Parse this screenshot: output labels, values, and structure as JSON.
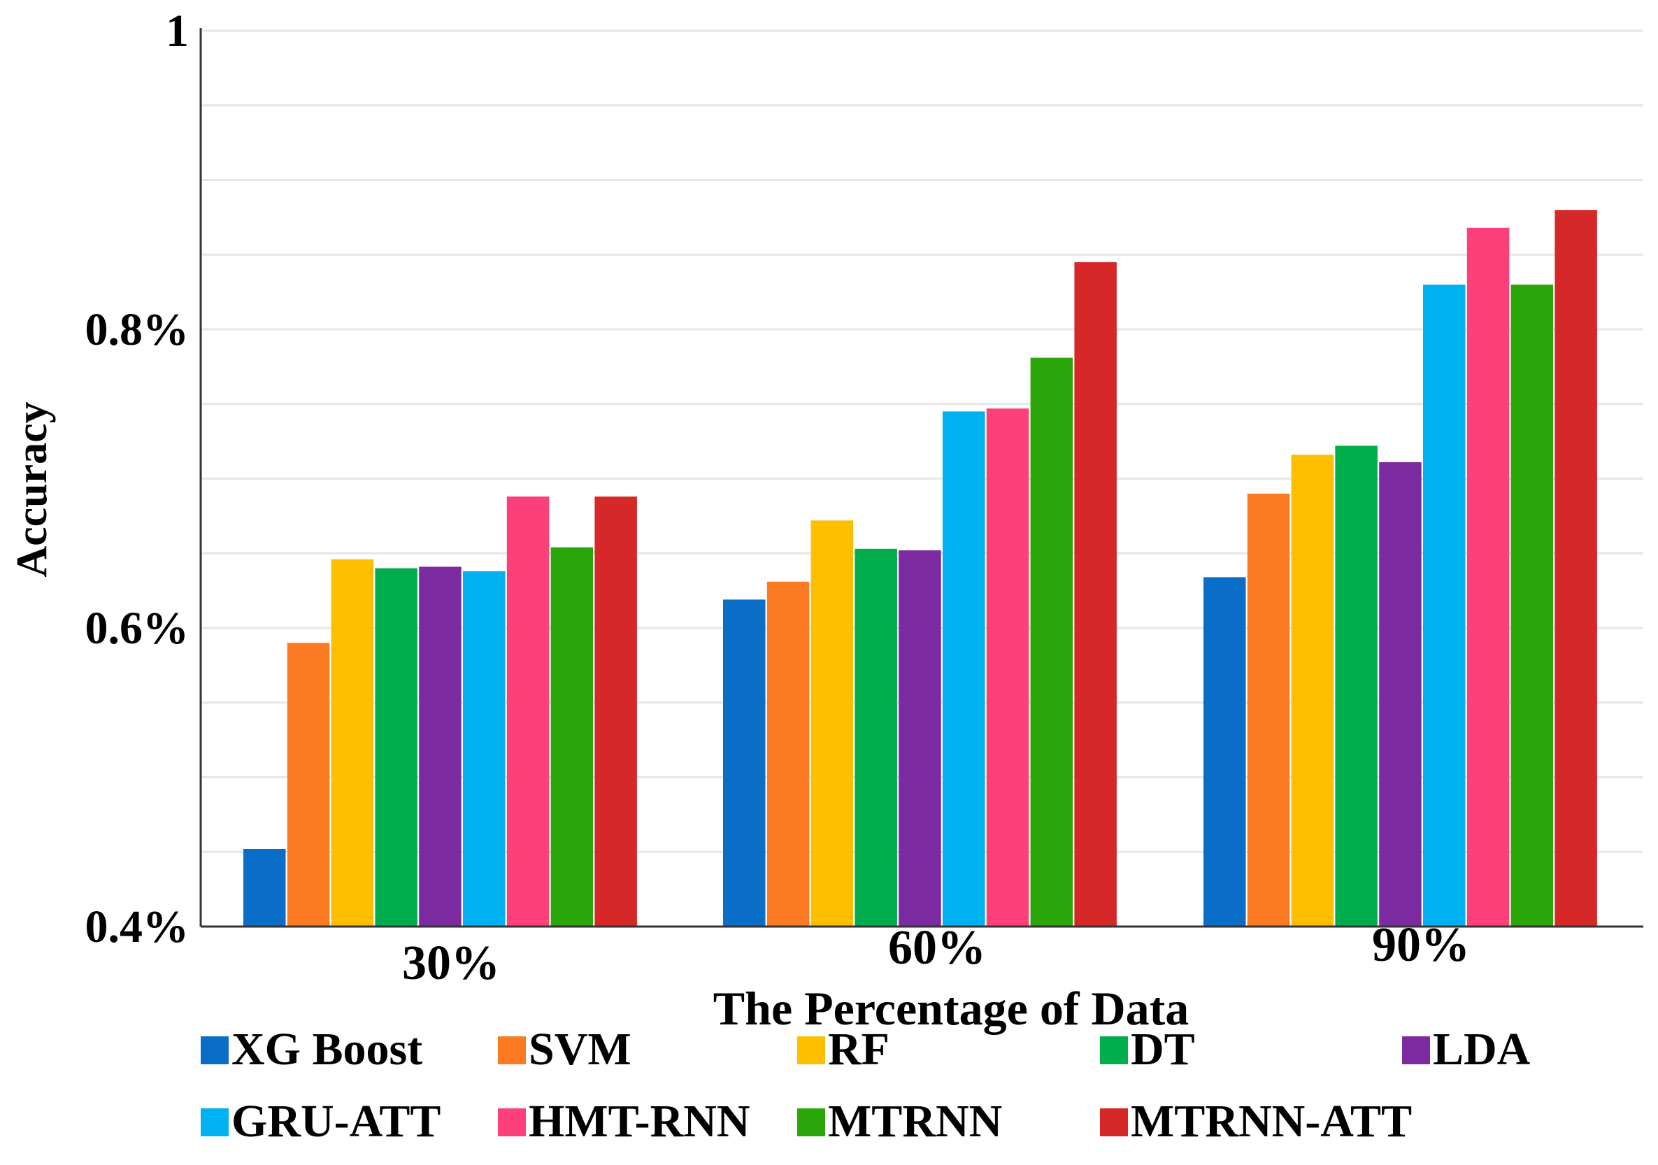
{
  "chart_data": {
    "type": "bar",
    "title": "",
    "xlabel": "The Percentage of Data",
    "ylabel": "Accuracy",
    "ylim": [
      0.4,
      1.0
    ],
    "yticks": [
      {
        "value": 0.4,
        "label": "0.4%"
      },
      {
        "value": 0.6,
        "label": "0.6%"
      },
      {
        "value": 0.8,
        "label": "0.8%"
      },
      {
        "value": 1.0,
        "label": "1"
      }
    ],
    "grid": true,
    "legend_position": "bottom",
    "categories": [
      "30%",
      "60%",
      "90%"
    ],
    "series": [
      {
        "name": "XG Boost",
        "color": "#0a6ec9",
        "values": [
          0.452,
          0.619,
          0.634
        ]
      },
      {
        "name": "SVM",
        "color": "#fb7a22",
        "values": [
          0.59,
          0.631,
          0.69
        ]
      },
      {
        "name": "RF",
        "color": "#fdbf00",
        "values": [
          0.646,
          0.672,
          0.716
        ]
      },
      {
        "name": "DT",
        "color": "#00ad4c",
        "values": [
          0.64,
          0.653,
          0.722
        ]
      },
      {
        "name": "LDA",
        "color": "#7c2aa0",
        "values": [
          0.641,
          0.652,
          0.711
        ]
      },
      {
        "name": "GRU-ATT",
        "color": "#00b1f1",
        "values": [
          0.638,
          0.745,
          0.83
        ]
      },
      {
        "name": "HMT-RNN",
        "color": "#fd3f7a",
        "values": [
          0.688,
          0.747,
          0.868
        ]
      },
      {
        "name": "MTRNN",
        "color": "#2aa60b",
        "values": [
          0.654,
          0.781,
          0.83
        ]
      },
      {
        "name": "MTRNN-ATT",
        "color": "#d62828",
        "values": [
          0.688,
          0.845,
          0.88
        ]
      }
    ]
  }
}
